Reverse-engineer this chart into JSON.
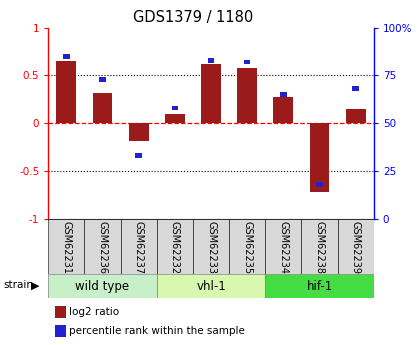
{
  "title": "GDS1379 / 1180",
  "samples": [
    "GSM62231",
    "GSM62236",
    "GSM62237",
    "GSM62232",
    "GSM62233",
    "GSM62235",
    "GSM62234",
    "GSM62238",
    "GSM62239"
  ],
  "log2_ratio": [
    0.65,
    0.32,
    -0.18,
    0.1,
    0.62,
    0.58,
    0.28,
    -0.72,
    0.15
  ],
  "percentile_rank": [
    85,
    73,
    33,
    58,
    83,
    82,
    65,
    18,
    68
  ],
  "groups": [
    {
      "label": "wild type",
      "indices": [
        0,
        1,
        2
      ],
      "color": "#c8f0c8"
    },
    {
      "label": "vhl-1",
      "indices": [
        3,
        4,
        5
      ],
      "color": "#d8f8b0"
    },
    {
      "label": "hif-1",
      "indices": [
        6,
        7,
        8
      ],
      "color": "#44dd44"
    }
  ],
  "ylim_left": [
    -1,
    1
  ],
  "ylim_right": [
    0,
    100
  ],
  "yticks_left": [
    -1,
    -0.5,
    0,
    0.5,
    1
  ],
  "ytick_labels_left": [
    "-1",
    "-0.5",
    "0",
    "0.5",
    "1"
  ],
  "yticks_right": [
    0,
    25,
    50,
    75,
    100
  ],
  "ytick_labels_right": [
    "0",
    "25",
    "50",
    "75",
    "100%"
  ],
  "hlines_dotted": [
    0.5,
    -0.5
  ],
  "bar_color_red": "#9b1a1a",
  "bar_color_blue": "#2222cc",
  "legend_labels": [
    "log2 ratio",
    "percentile rank within the sample"
  ],
  "strain_label": "strain",
  "strain_arrow": "▶",
  "group_label_fontsize": 8.5,
  "tick_label_fontsize": 7.0,
  "legend_fontsize": 7.5,
  "bar_width": 0.55
}
